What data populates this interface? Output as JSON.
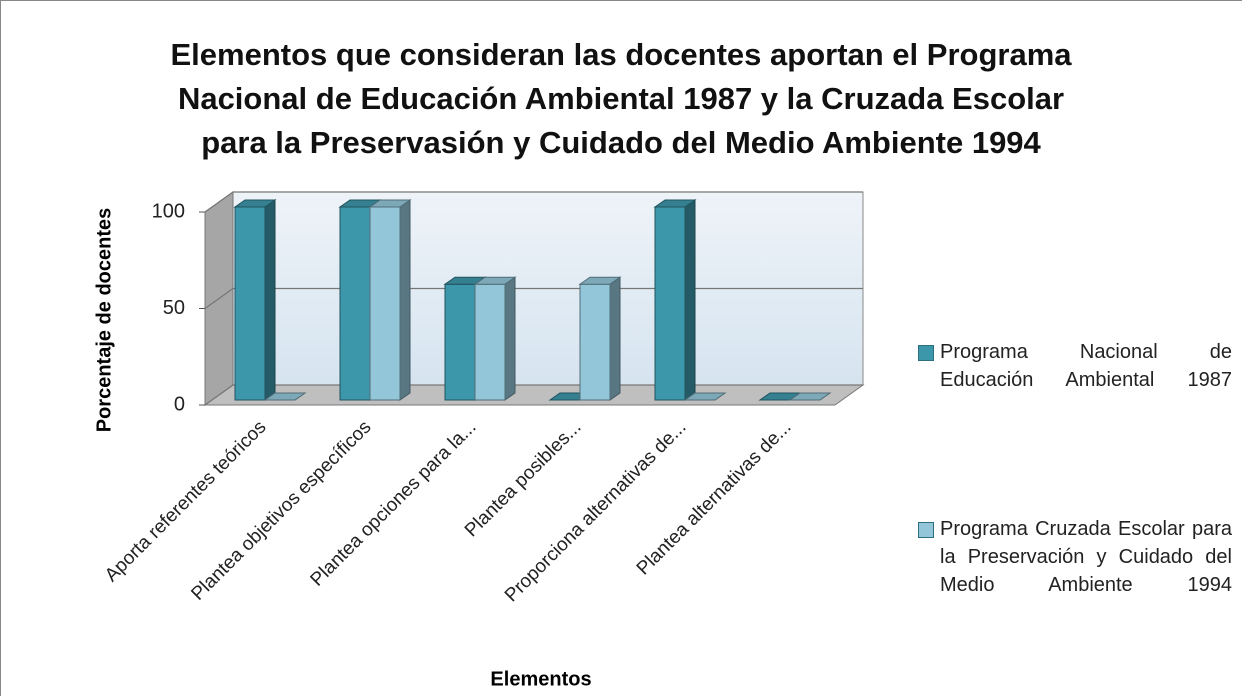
{
  "chart_data": {
    "type": "bar3d",
    "title": [
      "Elementos que consideran las docentes aportan el Programa",
      "Nacional de Educación Ambiental 1987 y la Cruzada Escolar",
      "para la Preservasión y Cuidado del Medio Ambiente 1994"
    ],
    "x_label": "Elementos",
    "y_label": "Porcentaje de docentes",
    "categories": [
      "Aporta referentes teóricos",
      "Plantea objetivos específicos",
      "Plantea opciones para la...",
      "Plantea posibles...",
      "Proporciona alternativas de...",
      "Plantea alternativas de..."
    ],
    "series": [
      {
        "name": "Programa Nacional de Educación Ambiental 1987",
        "color": "#3d97ab",
        "values": [
          100,
          100,
          60,
          0,
          100,
          0
        ]
      },
      {
        "name": "Programa Cruzada Escolar para la Preservación y Cuidado del Medio Ambiente 1994",
        "color": "#93c6d8",
        "values": [
          0,
          100,
          60,
          60,
          0,
          0
        ]
      }
    ],
    "ylim": [
      0,
      100
    ],
    "yticks": [
      0,
      50,
      100
    ],
    "grid": true,
    "legend": "right"
  }
}
